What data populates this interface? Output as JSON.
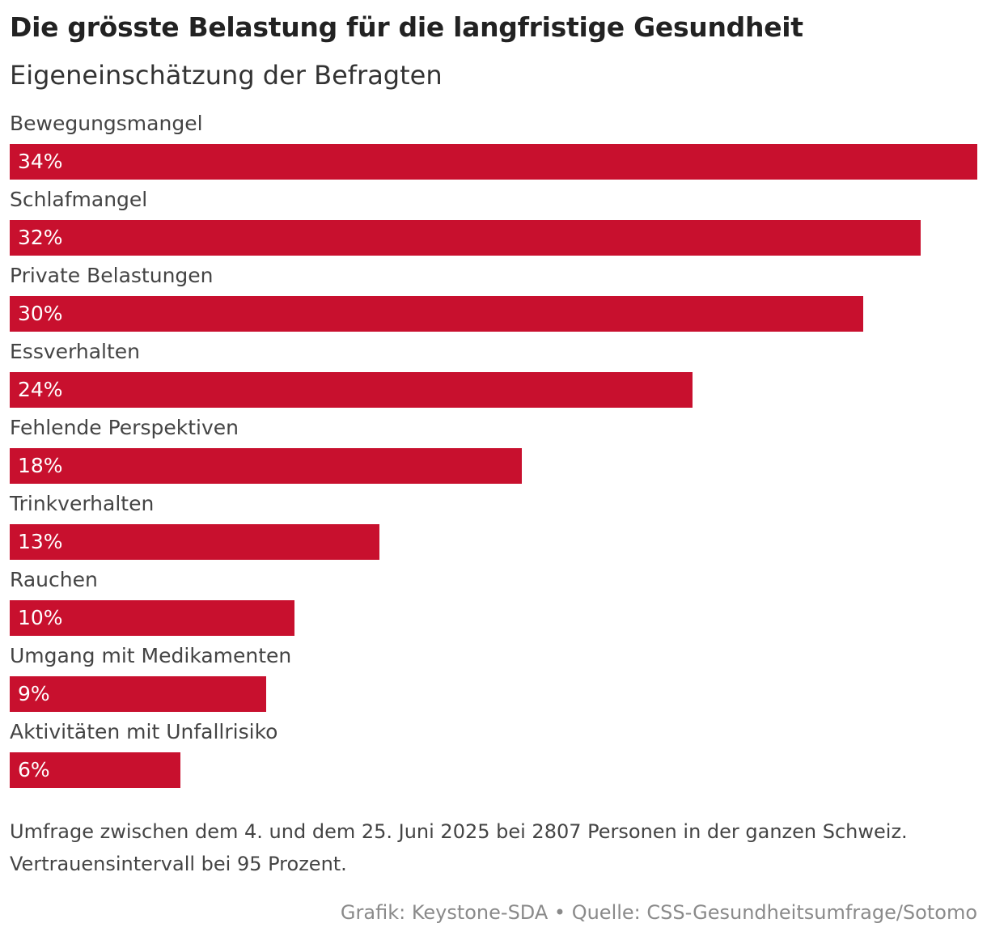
{
  "chart_data": {
    "type": "bar",
    "orientation": "horizontal",
    "title": "Die grösste Belastung für die langfristige Gesundheit",
    "subtitle": "Eigeneinschätzung der Befragten",
    "categories": [
      "Bewegungsmangel",
      "Schlafmangel",
      "Private Belastungen",
      "Essverhalten",
      "Fehlende Perspektiven",
      "Trinkverhalten",
      "Rauchen",
      "Umgang mit Medikamenten",
      "Aktivitäten mit Unfallrisiko"
    ],
    "values": [
      34,
      32,
      30,
      24,
      18,
      13,
      10,
      9,
      6
    ],
    "value_labels": [
      "34%",
      "32%",
      "30%",
      "24%",
      "18%",
      "13%",
      "10%",
      "9%",
      "6%"
    ],
    "unit": "%",
    "xlim": [
      0,
      34
    ],
    "bar_color": "#c8102e",
    "grid": false,
    "legend": "none"
  },
  "notes": {
    "line1": "Umfrage zwischen dem 4. und dem 25. Juni 2025 bei 2807 Personen in der ganzen Schweiz.",
    "line2": "Vertrauensintervall bei 95 Prozent."
  },
  "credit": "Grafik: Keystone-SDA • Quelle: CSS-Gesundheitsumfrage/Sotomo"
}
